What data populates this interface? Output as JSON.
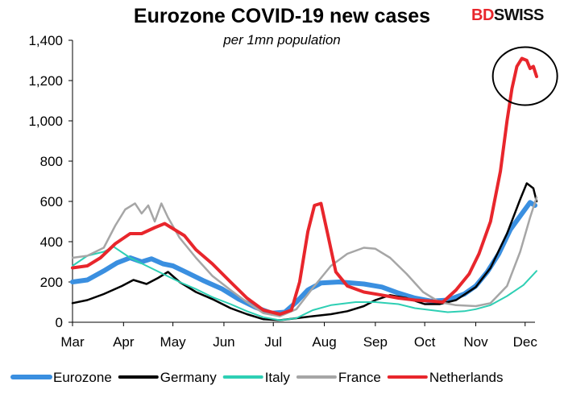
{
  "title": "Eurozone COVID-19 new cases",
  "subtitle": "per 1mn population",
  "brand": {
    "part1": "BD",
    "part2": "SWISS",
    "color1": "#e8262c",
    "color2": "#111111"
  },
  "chart_data": {
    "type": "line",
    "xlabel": "",
    "ylabel": "",
    "ylim": [
      0,
      1400
    ],
    "y_ticks": [
      0,
      200,
      400,
      600,
      800,
      1000,
      1200,
      1400
    ],
    "y_tick_labels": [
      "0",
      "200",
      "400",
      "600",
      "800",
      "1,000",
      "1,200",
      "1,400"
    ],
    "x_ticks": [
      "Mar",
      "Apr",
      "May",
      "Jun",
      "Jul",
      "Aug",
      "Sep",
      "Oct",
      "Nov",
      "Dec"
    ],
    "x_start": "2020-03-01",
    "x_end": "2020-12-07",
    "grid": false,
    "legend_position": "bottom",
    "annotation": "circle around Netherlands peak",
    "series": [
      {
        "name": "Eurozone",
        "color": "#3a8fe0",
        "width": 6,
        "points": [
          [
            "2020-03-01",
            200
          ],
          [
            "2020-03-10",
            210
          ],
          [
            "2020-03-20",
            255
          ],
          [
            "2020-03-28",
            295
          ],
          [
            "2020-04-05",
            320
          ],
          [
            "2020-04-12",
            300
          ],
          [
            "2020-04-18",
            315
          ],
          [
            "2020-04-25",
            290
          ],
          [
            "2020-05-01",
            280
          ],
          [
            "2020-05-10",
            245
          ],
          [
            "2020-05-20",
            205
          ],
          [
            "2020-05-31",
            165
          ],
          [
            "2020-06-10",
            115
          ],
          [
            "2020-06-20",
            75
          ],
          [
            "2020-06-30",
            45
          ],
          [
            "2020-07-08",
            50
          ],
          [
            "2020-07-15",
            100
          ],
          [
            "2020-07-22",
            160
          ],
          [
            "2020-07-30",
            195
          ],
          [
            "2020-08-10",
            200
          ],
          [
            "2020-08-25",
            190
          ],
          [
            "2020-09-05",
            175
          ],
          [
            "2020-09-15",
            145
          ],
          [
            "2020-09-25",
            120
          ],
          [
            "2020-10-05",
            105
          ],
          [
            "2020-10-15",
            110
          ],
          [
            "2020-10-25",
            140
          ],
          [
            "2020-11-01",
            180
          ],
          [
            "2020-11-08",
            250
          ],
          [
            "2020-11-15",
            340
          ],
          [
            "2020-11-22",
            460
          ],
          [
            "2020-11-30",
            550
          ],
          [
            "2020-12-04",
            595
          ],
          [
            "2020-12-07",
            580
          ]
        ]
      },
      {
        "name": "Germany",
        "color": "#000000",
        "width": 2.5,
        "points": [
          [
            "2020-03-01",
            95
          ],
          [
            "2020-03-10",
            110
          ],
          [
            "2020-03-20",
            140
          ],
          [
            "2020-03-31",
            180
          ],
          [
            "2020-04-07",
            210
          ],
          [
            "2020-04-15",
            190
          ],
          [
            "2020-04-22",
            220
          ],
          [
            "2020-04-28",
            250
          ],
          [
            "2020-05-05",
            200
          ],
          [
            "2020-05-15",
            150
          ],
          [
            "2020-05-25",
            115
          ],
          [
            "2020-06-05",
            70
          ],
          [
            "2020-06-15",
            40
          ],
          [
            "2020-06-25",
            15
          ],
          [
            "2020-07-05",
            10
          ],
          [
            "2020-07-15",
            20
          ],
          [
            "2020-07-25",
            30
          ],
          [
            "2020-08-05",
            40
          ],
          [
            "2020-08-15",
            55
          ],
          [
            "2020-08-25",
            80
          ],
          [
            "2020-09-01",
            110
          ],
          [
            "2020-09-10",
            135
          ],
          [
            "2020-09-20",
            120
          ],
          [
            "2020-10-01",
            90
          ],
          [
            "2020-10-10",
            90
          ],
          [
            "2020-10-20",
            110
          ],
          [
            "2020-11-01",
            175
          ],
          [
            "2020-11-10",
            270
          ],
          [
            "2020-11-20",
            440
          ],
          [
            "2020-11-28",
            610
          ],
          [
            "2020-12-02",
            690
          ],
          [
            "2020-12-06",
            665
          ],
          [
            "2020-12-08",
            600
          ]
        ]
      },
      {
        "name": "Italy",
        "color": "#2ecfb4",
        "width": 2,
        "points": [
          [
            "2020-03-01",
            280
          ],
          [
            "2020-03-10",
            330
          ],
          [
            "2020-03-20",
            350
          ],
          [
            "2020-03-26",
            375
          ],
          [
            "2020-04-05",
            320
          ],
          [
            "2020-04-15",
            280
          ],
          [
            "2020-04-25",
            240
          ],
          [
            "2020-05-05",
            200
          ],
          [
            "2020-05-15",
            165
          ],
          [
            "2020-05-25",
            125
          ],
          [
            "2020-06-05",
            90
          ],
          [
            "2020-06-15",
            55
          ],
          [
            "2020-06-25",
            25
          ],
          [
            "2020-07-05",
            10
          ],
          [
            "2020-07-15",
            20
          ],
          [
            "2020-07-25",
            60
          ],
          [
            "2020-08-05",
            85
          ],
          [
            "2020-08-20",
            100
          ],
          [
            "2020-09-01",
            100
          ],
          [
            "2020-09-15",
            90
          ],
          [
            "2020-09-25",
            70
          ],
          [
            "2020-10-05",
            60
          ],
          [
            "2020-10-15",
            50
          ],
          [
            "2020-10-25",
            55
          ],
          [
            "2020-11-01",
            65
          ],
          [
            "2020-11-10",
            85
          ],
          [
            "2020-11-20",
            130
          ],
          [
            "2020-11-30",
            185
          ],
          [
            "2020-12-08",
            255
          ]
        ]
      },
      {
        "name": "France",
        "color": "#a6a6a6",
        "width": 2.5,
        "points": [
          [
            "2020-03-01",
            320
          ],
          [
            "2020-03-10",
            330
          ],
          [
            "2020-03-20",
            370
          ],
          [
            "2020-03-27",
            480
          ],
          [
            "2020-04-02",
            560
          ],
          [
            "2020-04-08",
            590
          ],
          [
            "2020-04-12",
            540
          ],
          [
            "2020-04-16",
            580
          ],
          [
            "2020-04-20",
            500
          ],
          [
            "2020-04-24",
            590
          ],
          [
            "2020-04-28",
            520
          ],
          [
            "2020-05-05",
            420
          ],
          [
            "2020-05-15",
            320
          ],
          [
            "2020-05-25",
            230
          ],
          [
            "2020-06-05",
            160
          ],
          [
            "2020-06-15",
            100
          ],
          [
            "2020-06-25",
            45
          ],
          [
            "2020-07-05",
            30
          ],
          [
            "2020-07-15",
            65
          ],
          [
            "2020-07-25",
            170
          ],
          [
            "2020-08-05",
            280
          ],
          [
            "2020-08-15",
            340
          ],
          [
            "2020-08-25",
            370
          ],
          [
            "2020-09-01",
            365
          ],
          [
            "2020-09-10",
            320
          ],
          [
            "2020-09-20",
            240
          ],
          [
            "2020-09-30",
            150
          ],
          [
            "2020-10-10",
            100
          ],
          [
            "2020-10-20",
            85
          ],
          [
            "2020-11-01",
            80
          ],
          [
            "2020-11-10",
            95
          ],
          [
            "2020-11-20",
            180
          ],
          [
            "2020-11-28",
            350
          ],
          [
            "2020-12-04",
            520
          ],
          [
            "2020-12-08",
            620
          ]
        ]
      },
      {
        "name": "Netherlands",
        "color": "#e8262c",
        "width": 4,
        "points": [
          [
            "2020-03-01",
            270
          ],
          [
            "2020-03-10",
            280
          ],
          [
            "2020-03-18",
            320
          ],
          [
            "2020-03-27",
            390
          ],
          [
            "2020-04-05",
            440
          ],
          [
            "2020-04-12",
            440
          ],
          [
            "2020-04-20",
            470
          ],
          [
            "2020-04-26",
            490
          ],
          [
            "2020-05-02",
            460
          ],
          [
            "2020-05-08",
            430
          ],
          [
            "2020-05-15",
            360
          ],
          [
            "2020-05-25",
            290
          ],
          [
            "2020-06-05",
            200
          ],
          [
            "2020-06-15",
            120
          ],
          [
            "2020-06-25",
            60
          ],
          [
            "2020-07-05",
            40
          ],
          [
            "2020-07-12",
            60
          ],
          [
            "2020-07-17",
            200
          ],
          [
            "2020-07-22",
            450
          ],
          [
            "2020-07-26",
            580
          ],
          [
            "2020-07-30",
            590
          ],
          [
            "2020-08-03",
            440
          ],
          [
            "2020-08-08",
            250
          ],
          [
            "2020-08-15",
            180
          ],
          [
            "2020-08-25",
            150
          ],
          [
            "2020-09-05",
            135
          ],
          [
            "2020-09-15",
            120
          ],
          [
            "2020-09-25",
            110
          ],
          [
            "2020-10-05",
            105
          ],
          [
            "2020-10-12",
            100
          ],
          [
            "2020-10-20",
            160
          ],
          [
            "2020-10-28",
            240
          ],
          [
            "2020-11-03",
            340
          ],
          [
            "2020-11-10",
            500
          ],
          [
            "2020-11-16",
            750
          ],
          [
            "2020-11-20",
            1000
          ],
          [
            "2020-11-23",
            1160
          ],
          [
            "2020-11-26",
            1270
          ],
          [
            "2020-11-29",
            1310
          ],
          [
            "2020-12-02",
            1300
          ],
          [
            "2020-12-04",
            1260
          ],
          [
            "2020-12-06",
            1270
          ],
          [
            "2020-12-08",
            1220
          ]
        ]
      }
    ]
  }
}
